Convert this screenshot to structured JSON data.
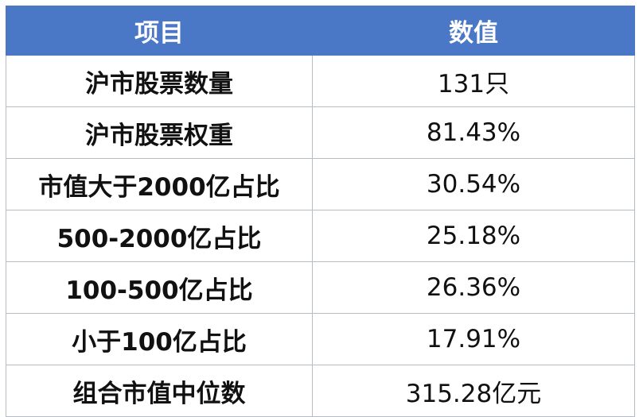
{
  "table": {
    "header": [
      "项目",
      "数值"
    ],
    "rows": [
      [
        "沪市股票数量",
        "131只"
      ],
      [
        "沪市股票权重",
        "81.43%"
      ],
      [
        "市值大于2000亿占比",
        "30.54%"
      ],
      [
        "500-2000亿占比",
        "25.18%"
      ],
      [
        "100-500亿占比",
        "26.36%"
      ],
      [
        "小于100亿占比",
        "17.91%"
      ],
      [
        "组合市值中位数",
        "315.28亿元"
      ]
    ]
  }
}
